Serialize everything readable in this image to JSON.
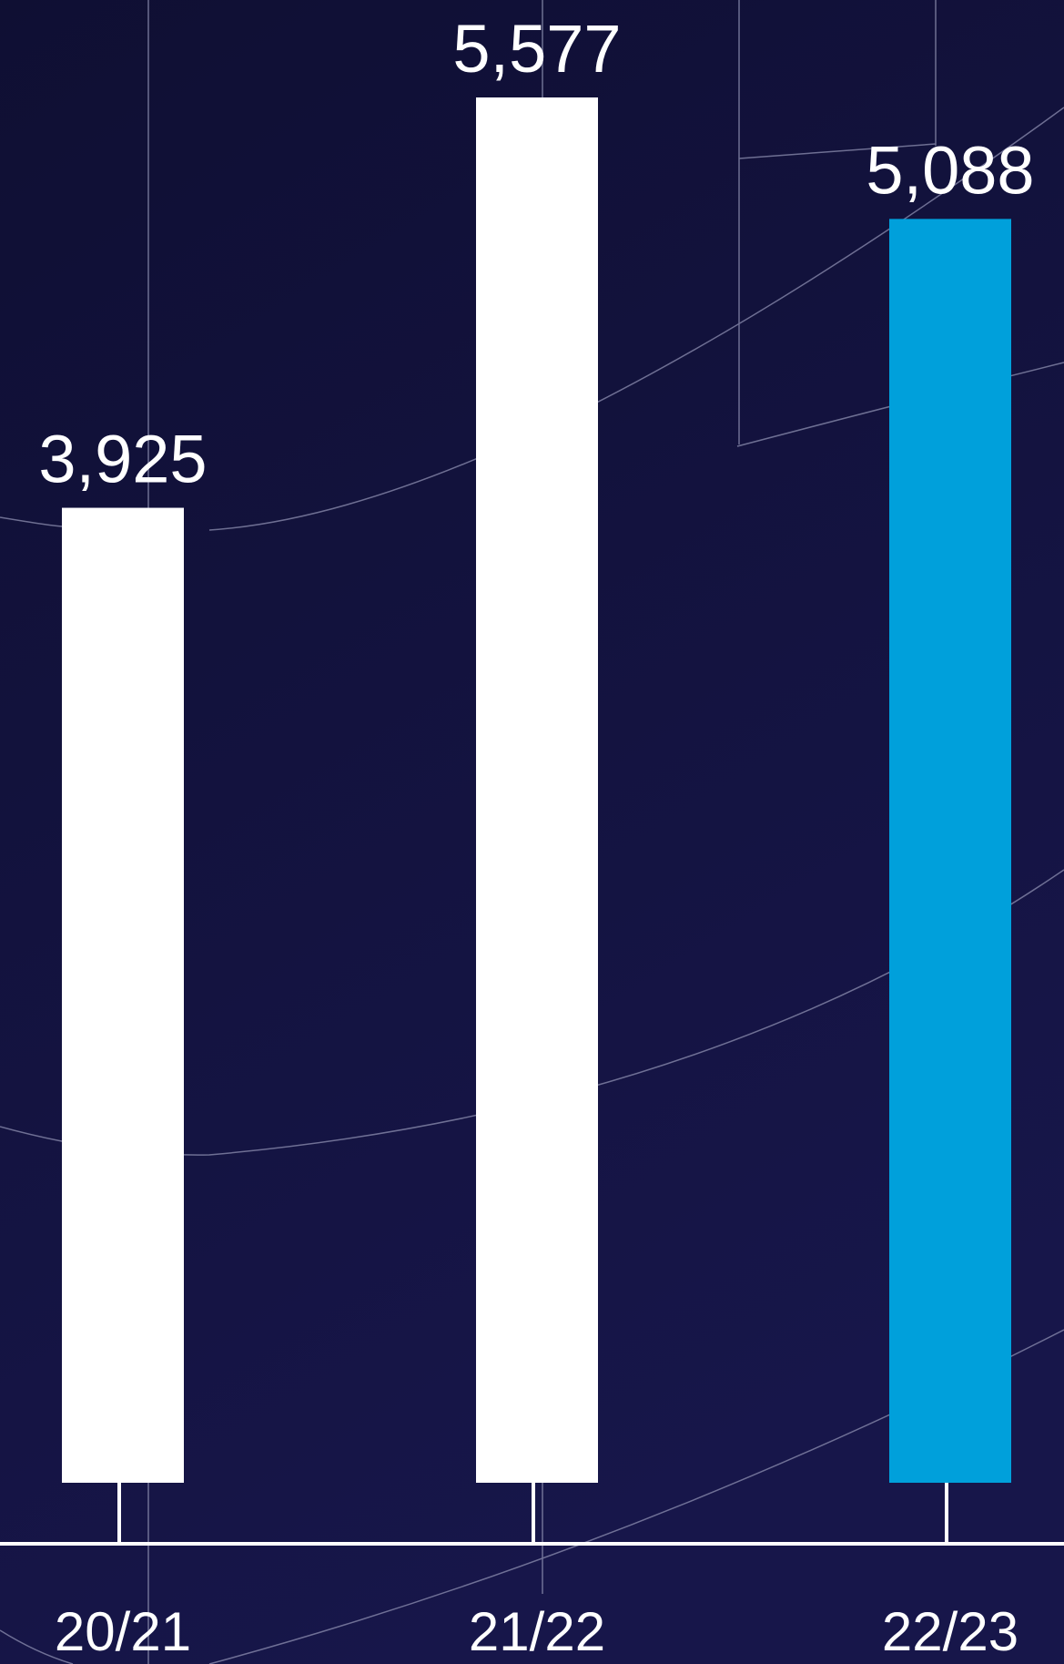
{
  "chart_data": {
    "type": "bar",
    "categories": [
      "20/21",
      "21/22",
      "22/23"
    ],
    "values": [
      3925,
      5577,
      5088
    ],
    "value_labels": [
      "3,925",
      "5,577",
      "5,088"
    ],
    "ylim": [
      0,
      6000
    ],
    "grid": false,
    "legend": "none",
    "colors": {
      "background_top": "#0f0f33",
      "background_bottom": "#17164a",
      "bar_default": "#ffffff",
      "bar_highlight": "#00a0db",
      "axis": "#ffffff",
      "text": "#ffffff",
      "decor_line": "#8d8fb0"
    },
    "highlight_index": 2
  }
}
